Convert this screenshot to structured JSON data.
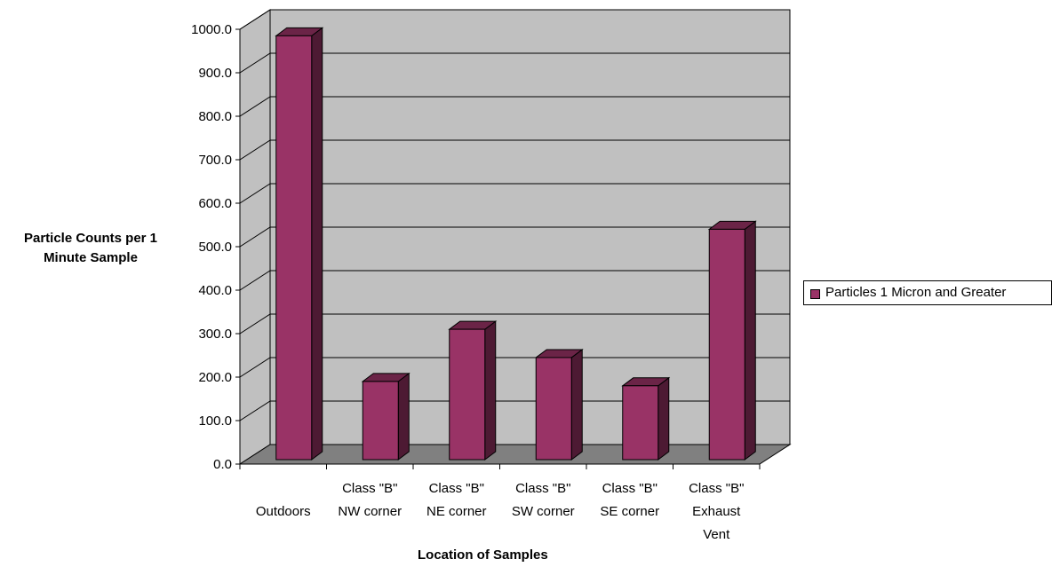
{
  "chart_data": {
    "type": "bar",
    "title": "",
    "xlabel": "Location of Samples",
    "ylabel": "Particle Counts per 1 Minute Sample",
    "ylim": [
      0,
      1000
    ],
    "yticks": [
      "0.0",
      "100.0",
      "200.0",
      "300.0",
      "400.0",
      "500.0",
      "600.0",
      "700.0",
      "800.0",
      "900.0",
      "1000.0"
    ],
    "categories": [
      [
        "Outdoors"
      ],
      [
        "Class \"B\"",
        "NW corner"
      ],
      [
        "Class \"B\"",
        "NE corner"
      ],
      [
        "Class \"B\"",
        "SW corner"
      ],
      [
        "Class \"B\"",
        "SE corner"
      ],
      [
        "Class \"B\"",
        "Exhaust",
        "Vent"
      ]
    ],
    "series": [
      {
        "name": "Particles 1 Micron and Greater",
        "values": [
          985,
          190,
          310,
          245,
          180,
          540
        ]
      }
    ],
    "grid": true,
    "legend": "right",
    "colors": {
      "bar_front": "#993366",
      "bar_side": "#4d1a33",
      "bar_top": "#6b2447",
      "wall": "#c0c0c0",
      "floor": "#808080"
    }
  }
}
